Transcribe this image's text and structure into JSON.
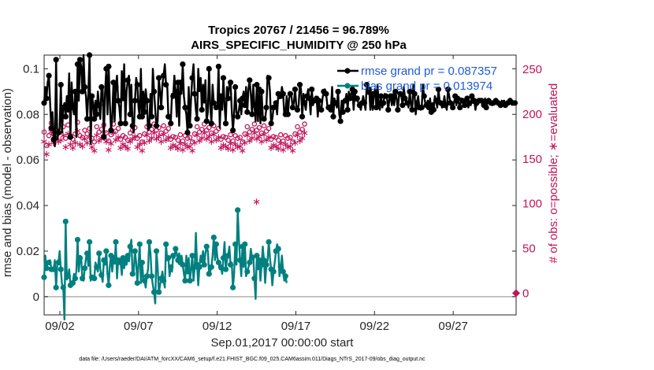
{
  "chart_data": {
    "type": "line",
    "title": "Tropics 20767 / 21456 = 96.789%",
    "subtitle": "AIRS_SPECIFIC_HUMIDITY @ 250 hPa",
    "xlabel": "Sep.01,2017 00:00:00 start",
    "ylabel": "rmse and bias (model - observation)",
    "y2label": "# of obs: o=possible; ∗=evaluated",
    "footer": "data file: /Users/raeder/DAI/ATM_forcXX/CAM6_setup/f.e21.FHIST_BGC.f09_025.CAM6assim.011/Diags_NTrS_2017-09/obs_diag_output.nc",
    "x_ticks": [
      {
        "day": 2,
        "label": "09/02"
      },
      {
        "day": 7,
        "label": "09/07"
      },
      {
        "day": 12,
        "label": "09/12"
      },
      {
        "day": 17,
        "label": "09/17"
      },
      {
        "day": 22,
        "label": "09/22"
      },
      {
        "day": 27,
        "label": "09/27"
      }
    ],
    "xlim": [
      1.0,
      31.0
    ],
    "ylim": [
      -0.008,
      0.106
    ],
    "y_ticks": [
      {
        "v": 0,
        "label": "0"
      },
      {
        "v": 0.02,
        "label": "0.02"
      },
      {
        "v": 0.04,
        "label": "0.04"
      },
      {
        "v": 0.06,
        "label": "0.06"
      },
      {
        "v": 0.08,
        "label": "0.08"
      },
      {
        "v": 0.1,
        "label": "0.1"
      }
    ],
    "y2lim": [
      -24.3,
      266
    ],
    "y2_ticks": [
      {
        "v": 0,
        "label": "0"
      },
      {
        "v": 50,
        "label": "50"
      },
      {
        "v": 100,
        "label": "100"
      },
      {
        "v": 150,
        "label": "150"
      },
      {
        "v": 200,
        "label": "200"
      },
      {
        "v": 250,
        "label": "250"
      }
    ],
    "legend": [
      {
        "name": "rmse grand pr = 0.087357",
        "color": "#000000"
      },
      {
        "name": "bias grand pr = 0.013974",
        "color": "#00807f"
      }
    ],
    "series": [
      {
        "name": "rmse",
        "color": "#000000",
        "values": [
          0.085,
          0.092,
          0.087,
          0.094,
          0.097,
          0.085,
          0.074,
          0.081,
          0.069,
          0.066,
          0.104,
          0.069,
          0.072,
          0.074,
          0.093,
          0.072,
          0.083,
          0.085,
          0.079,
          0.088,
          0.082,
          0.098,
          0.07,
          0.094,
          0.083,
          0.08,
          0.09,
          0.07,
          0.102,
          0.086,
          0.104,
          0.101,
          0.09,
          0.106,
          0.092,
          0.088,
          0.078,
          0.089,
          0.106,
          0.067,
          0.088,
          0.085,
          0.078,
          0.086,
          0.08,
          0.09,
          0.084,
          0.078,
          0.092,
          0.091,
          0.07,
          0.089,
          0.1,
          0.08,
          0.101,
          0.085,
          0.073,
          0.078,
          0.094,
          0.077,
          0.092,
          0.097,
          0.086,
          0.083,
          0.076,
          0.099,
          0.087,
          0.102,
          0.076,
          0.09,
          0.095,
          0.097,
          0.08,
          0.093,
          0.075,
          0.072,
          0.086,
          0.096,
          0.093,
          0.083,
          0.079,
          0.1,
          0.079,
          0.09,
          0.081,
          0.091,
          0.086,
          0.073,
          0.075,
          0.089,
          0.079,
          0.1,
          0.09,
          0.082,
          0.075,
          0.077,
          0.096,
          0.09,
          0.083,
          0.093,
          0.097,
          0.102,
          0.093,
          0.093,
          0.079,
          0.079,
          0.076,
          0.089,
          0.088,
          0.097,
          0.09,
          0.079,
          0.094,
          0.075,
          0.094,
          0.089,
          0.102,
          0.088,
          0.083,
          0.08,
          0.072,
          0.092,
          0.075,
          0.087,
          0.096,
          0.102,
          0.089,
          0.082,
          0.078,
          0.1,
          0.091,
          0.096,
          0.082,
          0.093,
          0.086,
          0.095,
          0.077,
          0.081,
          0.1,
          0.084,
          0.076,
          0.093,
          0.085,
          0.084,
          0.083,
          0.083,
          0.101,
          0.074,
          0.088,
          0.082,
          0.096,
          0.084,
          0.076,
          0.092,
          0.087,
          0.093,
          0.094,
          0.082,
          0.073,
          0.08,
          0.092,
          0.081,
          0.079,
          0.082,
          0.086,
          0.08,
          0.087,
          0.09,
          0.084,
          0.092,
          0.081,
          0.091,
          0.095,
          0.089,
          0.08,
          0.093,
          0.084,
          0.077,
          0.093,
          0.077,
          0.091,
          0.076,
          0.09,
          0.079,
          0.078,
          0.078,
          0.083,
          0.097,
          0.096,
          0.09,
          0.076,
          0.078,
          0.083,
          0.084,
          0.085,
          0.08,
          0.089,
          0.087,
          0.088,
          0.092,
          0.089,
          0.08,
          0.08,
          0.088,
          0.08,
          0.087,
          0.089,
          0.088,
          0.083,
          0.085,
          0.091,
          0.084,
          0.082,
          0.084,
          0.093,
          0.091,
          0.079,
          0.089,
          0.085,
          0.082,
          0.088,
          0.091,
          0.087,
          0.08,
          0.091,
          0.084,
          0.086,
          0.086,
          0.087,
          0.079,
          0.086,
          0.082,
          0.082,
          0.087,
          0.09,
          0.091,
          0.089,
          0.084,
          0.083,
          0.084,
          0.082,
          0.092,
          0.079,
          0.087,
          0.085,
          0.083,
          0.09,
          0.08,
          0.077,
          0.086,
          0.081,
          0.086,
          0.086,
          0.089,
          0.082,
          0.09,
          0.087,
          0.089,
          0.091,
          0.082,
          0.09,
          0.086,
          0.087,
          0.085,
          0.084,
          0.082,
          0.085,
          0.088,
          0.085,
          0.082,
          0.093,
          0.089,
          0.091,
          0.082,
          0.089,
          0.082,
          0.089,
          0.091,
          0.083,
          0.093,
          0.085,
          0.082,
          0.088,
          0.083,
          0.085,
          0.089,
          0.088,
          0.087,
          0.082,
          0.087,
          0.088,
          0.084,
          0.088,
          0.084,
          0.09,
          0.087,
          0.082,
          0.088,
          0.089,
          0.088,
          0.084,
          0.092,
          0.087,
          0.085,
          0.085,
          0.083,
          0.09,
          0.084,
          0.082,
          0.093,
          0.089,
          0.08,
          0.085,
          0.088,
          0.083,
          0.082,
          0.083,
          0.093,
          0.088,
          0.085,
          0.084,
          0.086,
          0.083,
          0.087,
          0.081,
          0.085,
          0.082,
          0.088,
          0.086,
          0.083,
          0.091,
          0.086,
          0.085,
          0.083,
          0.084,
          0.088,
          0.084,
          0.082,
          0.091,
          0.088,
          0.085,
          0.084,
          0.083,
          0.085,
          0.088,
          0.084,
          0.087,
          0.085,
          0.083,
          0.087,
          0.086,
          0.084,
          0.084,
          0.086,
          0.087,
          0.083,
          0.085,
          0.084,
          0.088,
          0.085,
          0.086,
          0.082,
          0.085,
          0.085,
          0.086,
          0.086,
          0.086,
          0.084,
          0.084,
          0.087,
          0.083,
          0.085,
          0.086,
          0.086,
          0.085,
          0.084,
          0.085,
          0.086,
          0.086,
          0.085,
          0.085,
          0.085,
          0.084,
          0.086,
          0.085,
          0.086,
          0.084,
          0.084,
          0.085,
          0.086,
          0.086,
          0.085,
          0.085,
          0.085,
          0.085,
          0.085
        ]
      },
      {
        "name": "bias",
        "color": "#00807f",
        "values": [
          0.0085,
          0.018,
          0.0125,
          0.015,
          0.015,
          0.016,
          0.012,
          0.012,
          0.012,
          0.016,
          0.004,
          0.0145,
          0.015,
          0.02,
          0.012,
          0.0055,
          0.004,
          -0.01,
          0.033,
          0.0075,
          0.009,
          0.012,
          0.005,
          0.006,
          0.006,
          0.01,
          0.008,
          0.011,
          0.025,
          0.011,
          0.017,
          0.0175,
          0.008,
          0.007,
          0.0125,
          0.017,
          0.019,
          0.0135,
          0.024,
          0.007,
          0.0085,
          0.009,
          0.008,
          0.015,
          0.013,
          0.011,
          0.019,
          0.012,
          0.0095,
          0.0065,
          0.016,
          0.014,
          0.02,
          0.01,
          0.005,
          0.0135,
          0.018,
          0.011,
          0.017,
          0.0145,
          0.024,
          0.008,
          0.016,
          0.016,
          0.015,
          0.0095,
          0.017,
          0.0125,
          0.016,
          0.014,
          0.018,
          0.0155,
          0.022,
          0.025,
          0.01,
          0.011,
          0.02,
          0.015,
          0.006,
          0.014,
          0.023,
          0.006,
          0.015,
          0.008,
          0.007,
          0.004,
          0.009,
          0.012,
          0.024,
          0.019,
          0.009,
          0.005,
          0.002,
          -0.003,
          0.02,
          0.013,
          0.002,
          0.005,
          0.008,
          0.011,
          0.007,
          0.004,
          0.023,
          0.016,
          0.017,
          0.009,
          0.013,
          0.011,
          0.018,
          0.017,
          0.021,
          0.019,
          0.016,
          0.019,
          0.015,
          0.018,
          0.014,
          0.01,
          0.007,
          0.018,
          0.011,
          0.017,
          0.007,
          0.012,
          0.018,
          0.007,
          0.013,
          0.028,
          0.014,
          0.005,
          0.013,
          0.018,
          0.016,
          0.02,
          0.014,
          0.019,
          0.022,
          0.02,
          0.01,
          0.011,
          0.013,
          0.018,
          0.026,
          0.016,
          0.023,
          0.017,
          0.015,
          0.012,
          0.013,
          0.01,
          0.017,
          0.024,
          0.012,
          0.016,
          0.018,
          0.022,
          0.014,
          0.015,
          0.004,
          0.01,
          0.023,
          0.014,
          0.038,
          0.025,
          0.016,
          0.009,
          0.022,
          0.013,
          0.023,
          0.009,
          0.011,
          0.013,
          0.015,
          0.021,
          0.017,
          0.018,
          0.008,
          -0.001,
          0.018,
          0.012,
          0.016,
          0.007,
          0.014,
          0.022,
          0.016,
          0.006,
          0.014,
          0.016,
          0.024,
          0.017,
          0.012,
          0.005,
          0.011,
          0.015,
          0.02,
          0.023,
          0.021,
          0.009,
          0.013,
          0.018,
          0.011,
          0.007,
          0.009,
          0.006
        ]
      },
      {
        "name": "possible_obs",
        "color": "#c0145a",
        "marker": "o",
        "axis": "right",
        "values": [
          180,
          172,
          165,
          183,
          176,
          170,
          190,
          185,
          178,
          175,
          182,
          168,
          179,
          177,
          181,
          174,
          186,
          171,
          173,
          184,
          188,
          169,
          176,
          180,
          172,
          183,
          178,
          170,
          191,
          185,
          176,
          179,
          174,
          187,
          182,
          171,
          178,
          175,
          184,
          190,
          173,
          181,
          169,
          177,
          186,
          172,
          180,
          176,
          183,
          171,
          188,
          174,
          179,
          185,
          170,
          182,
          177,
          173,
          189,
          175,
          181,
          168,
          184,
          178,
          172,
          186,
          176,
          180,
          174,
          183,
          171,
          187,
          179,
          175,
          182,
          170,
          185,
          177,
          173,
          188,
          176,
          181,
          169,
          184,
          178,
          172,
          186,
          175,
          180,
          174,
          183,
          171,
          189,
          177,
          182,
          170,
          185,
          176,
          179,
          173,
          187,
          174,
          181,
          168,
          184,
          178,
          172,
          186,
          175,
          180,
          174,
          183,
          171,
          188,
          177,
          182,
          170,
          185,
          176,
          179,
          173,
          187,
          174,
          181,
          169,
          184,
          178,
          172,
          186,
          175,
          180,
          174,
          183,
          171,
          189,
          177,
          182,
          170,
          185,
          176,
          179,
          173,
          187,
          174,
          181,
          168,
          184,
          178,
          172,
          186,
          175,
          180,
          174,
          183,
          171,
          188,
          177,
          182,
          170,
          185,
          176,
          179,
          173,
          187,
          174,
          181,
          169,
          184,
          178,
          172,
          186,
          175,
          180,
          174,
          183,
          171,
          189,
          177,
          182,
          170,
          185,
          176,
          179,
          173,
          187,
          174,
          181,
          168,
          184,
          178,
          172,
          186,
          175,
          180,
          174,
          183,
          171,
          188,
          177,
          182,
          170,
          185,
          176,
          179,
          173,
          187,
          174,
          181,
          169,
          184,
          178,
          172,
          186,
          175,
          180,
          174,
          183,
          171,
          189,
          177
        ]
      },
      {
        "name": "evaluated_obs",
        "color": "#c0145a",
        "marker": "*",
        "axis": "right",
        "values": [
          170,
          163,
          156,
          174,
          167,
          160,
          181,
          176,
          169,
          166,
          173,
          159,
          170,
          168,
          172,
          165,
          177,
          162,
          164,
          175,
          179,
          160,
          167,
          171,
          163,
          174,
          169,
          161,
          182,
          176,
          167,
          170,
          165,
          178,
          173,
          162,
          169,
          166,
          175,
          181,
          164,
          172,
          160,
          168,
          177,
          163,
          171,
          167,
          174,
          162,
          179,
          165,
          170,
          176,
          161,
          173,
          168,
          164,
          180,
          166,
          172,
          159,
          175,
          169,
          163,
          177,
          167,
          171,
          165,
          174,
          162,
          178,
          170,
          166,
          173,
          161,
          176,
          168,
          164,
          179,
          167,
          172,
          160,
          175,
          169,
          163,
          177,
          166,
          171,
          165,
          174,
          162,
          180,
          168,
          173,
          161,
          176,
          167,
          170,
          164,
          178,
          165,
          172,
          159,
          175,
          169,
          163,
          177,
          166,
          171,
          165,
          174,
          162,
          179,
          168,
          173,
          161,
          176,
          167,
          170,
          164,
          178,
          165,
          172,
          160,
          175,
          169,
          163,
          177,
          166,
          171,
          165,
          174,
          162,
          180,
          168,
          173,
          161,
          176,
          167,
          170,
          164,
          178,
          165,
          172,
          159,
          175,
          169,
          163,
          177,
          166,
          171,
          165,
          174,
          162,
          179,
          168,
          173,
          161,
          176,
          167,
          170,
          164,
          178,
          165,
          172,
          160,
          175,
          169,
          163,
          177,
          166,
          171,
          165,
          174,
          162,
          180,
          168,
          173,
          161,
          176,
          167,
          170,
          164,
          178,
          165,
          172,
          159,
          175,
          169,
          163,
          177,
          166,
          171,
          165,
          174,
          162,
          179,
          168,
          173,
          161,
          176,
          167,
          170,
          164,
          178,
          165,
          172,
          160,
          175,
          169,
          163,
          177,
          166,
          171,
          165,
          174,
          162,
          180,
          168
        ]
      }
    ],
    "outlier_evaluated": {
      "day": 14.5,
      "value": 103
    },
    "zero_marker": {
      "day": 31.0,
      "value": 0
    }
  }
}
